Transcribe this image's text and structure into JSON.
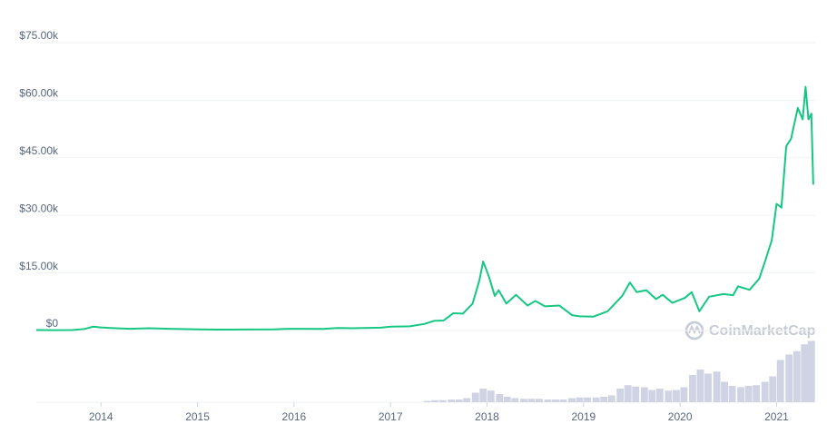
{
  "chart_data": {
    "type": "line",
    "watermark": "CoinMarketCap",
    "xlim": [
      2013.33,
      2021.4
    ],
    "xticks": [
      2014,
      2015,
      2016,
      2017,
      2018,
      2019,
      2020,
      2021
    ],
    "ylim": [
      0,
      75000
    ],
    "yticks": [
      {
        "value": 0,
        "label": "$0"
      },
      {
        "value": 15000,
        "label": "$15.00k"
      },
      {
        "value": 30000,
        "label": "$30.00k"
      },
      {
        "value": 45000,
        "label": "$45.00k"
      },
      {
        "value": 60000,
        "label": "$60.00k"
      },
      {
        "value": 75000,
        "label": "$75.00k"
      }
    ],
    "y2lim": [
      0,
      100
    ],
    "grid": true,
    "series": [
      {
        "type": "line",
        "color": "#16c784",
        "x": [
          2013.33,
          2013.5,
          2013.7,
          2013.83,
          2013.92,
          2014.0,
          2014.1,
          2014.3,
          2014.5,
          2014.7,
          2014.9,
          2015.0,
          2015.2,
          2015.5,
          2015.8,
          2015.9,
          2016.0,
          2016.3,
          2016.45,
          2016.6,
          2016.9,
          2017.0,
          2017.2,
          2017.35,
          2017.45,
          2017.55,
          2017.65,
          2017.75,
          2017.85,
          2017.92,
          2017.96,
          2018.02,
          2018.08,
          2018.12,
          2018.2,
          2018.3,
          2018.42,
          2018.5,
          2018.6,
          2018.75,
          2018.88,
          2018.96,
          2019.1,
          2019.25,
          2019.4,
          2019.48,
          2019.55,
          2019.65,
          2019.75,
          2019.82,
          2019.92,
          2020.05,
          2020.12,
          2020.2,
          2020.3,
          2020.45,
          2020.55,
          2020.6,
          2020.72,
          2020.82,
          2020.88,
          2020.95,
          2021.0,
          2021.05,
          2021.1,
          2021.15,
          2021.22,
          2021.27,
          2021.3,
          2021.33,
          2021.36,
          2021.38
        ],
        "values": [
          120,
          100,
          130,
          400,
          1000,
          800,
          650,
          450,
          600,
          450,
          350,
          310,
          240,
          260,
          300,
          400,
          430,
          420,
          650,
          600,
          750,
          1000,
          1100,
          1700,
          2500,
          2600,
          4500,
          4400,
          7000,
          13000,
          18000,
          14000,
          9000,
          10500,
          7000,
          9300,
          6500,
          7700,
          6300,
          6500,
          4000,
          3700,
          3600,
          5000,
          9000,
          12500,
          10000,
          10500,
          8200,
          9300,
          7200,
          8500,
          10000,
          5000,
          8800,
          9500,
          9200,
          11500,
          10600,
          13500,
          18000,
          23500,
          33000,
          32000,
          48000,
          50000,
          58000,
          55000,
          63500,
          55000,
          56500,
          38000
        ]
      },
      {
        "type": "bar",
        "axis": "y2",
        "color": "#cfd3e3",
        "x": [
          2017.38,
          2017.46,
          2017.54,
          2017.63,
          2017.71,
          2017.79,
          2017.88,
          2017.96,
          2018.04,
          2018.13,
          2018.21,
          2018.29,
          2018.38,
          2018.46,
          2018.54,
          2018.63,
          2018.71,
          2018.79,
          2018.88,
          2018.96,
          2019.04,
          2019.13,
          2019.21,
          2019.29,
          2019.38,
          2019.46,
          2019.54,
          2019.63,
          2019.71,
          2019.79,
          2019.88,
          2019.96,
          2020.04,
          2020.13,
          2020.21,
          2020.29,
          2020.38,
          2020.46,
          2020.54,
          2020.63,
          2020.71,
          2020.79,
          2020.88,
          2020.96,
          2021.04,
          2021.13,
          2021.21,
          2021.29,
          2021.36
        ],
        "values": [
          2,
          3,
          3,
          4,
          4,
          6,
          14,
          20,
          17,
          12,
          8,
          6,
          5,
          5,
          5,
          4,
          4,
          4,
          6,
          7,
          7,
          7,
          8,
          10,
          20,
          25,
          23,
          22,
          18,
          20,
          17,
          18,
          22,
          40,
          48,
          42,
          45,
          30,
          24,
          22,
          24,
          25,
          30,
          38,
          62,
          70,
          75,
          85,
          90
        ]
      }
    ]
  }
}
